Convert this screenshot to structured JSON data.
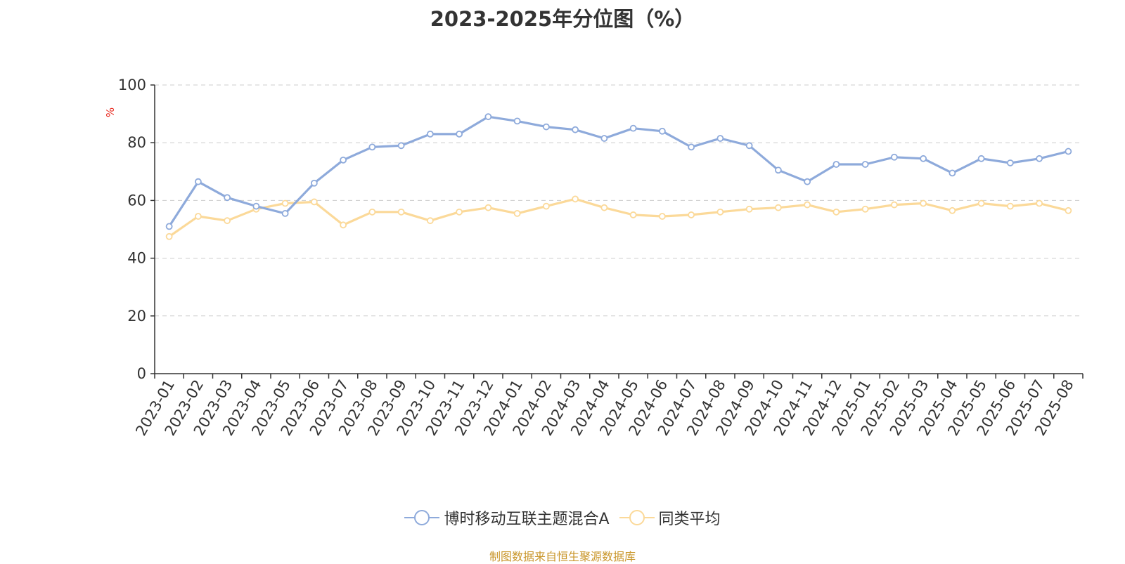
{
  "colors": {
    "series_a": "#8eaadb",
    "series_b": "#fbd999",
    "unit_label": "#e8271d",
    "source_note": "#c9962a",
    "axis": "#333333",
    "grid": "#cccccc"
  },
  "chart_data": {
    "type": "line",
    "title": "2023-2025年分位图（%）",
    "ylabel": "%",
    "ylim": [
      0,
      100
    ],
    "yticks": [
      0,
      20,
      40,
      60,
      80,
      100
    ],
    "grid": "horizontal dashed",
    "legend_position": "bottom",
    "categories": [
      "2023-01",
      "2023-02",
      "2023-03",
      "2023-04",
      "2023-05",
      "2023-06",
      "2023-07",
      "2023-08",
      "2023-09",
      "2023-10",
      "2023-11",
      "2023-12",
      "2024-01",
      "2024-02",
      "2024-03",
      "2024-04",
      "2024-05",
      "2024-06",
      "2024-07",
      "2024-08",
      "2024-09",
      "2024-10",
      "2024-11",
      "2024-12",
      "2025-01",
      "2025-02",
      "2025-03",
      "2025-04",
      "2025-05",
      "2025-06",
      "2025-07",
      "2025-08"
    ],
    "series": [
      {
        "name": "博时移动互联主题混合A",
        "color": "#8eaadb",
        "values": [
          51,
          66.5,
          61,
          58,
          55.5,
          66,
          74,
          78.5,
          79,
          83,
          83,
          89,
          87.5,
          85.5,
          84.5,
          81.5,
          85,
          84,
          78.5,
          81.5,
          79,
          70.5,
          66.5,
          72.5,
          72.5,
          75,
          74.5,
          69.5,
          74.5,
          73,
          74.5,
          77
        ]
      },
      {
        "name": "同类平均",
        "color": "#fbd999",
        "values": [
          47.5,
          54.5,
          53,
          57,
          59,
          59.5,
          51.5,
          56,
          56,
          53,
          56,
          57.5,
          55.5,
          58,
          60.5,
          57.5,
          55,
          54.5,
          55,
          56,
          57,
          57.5,
          58.5,
          56,
          57,
          58.5,
          59,
          56.5,
          59,
          58,
          59,
          56.5
        ]
      }
    ]
  },
  "source_note": "制图数据来自恒生聚源数据库"
}
